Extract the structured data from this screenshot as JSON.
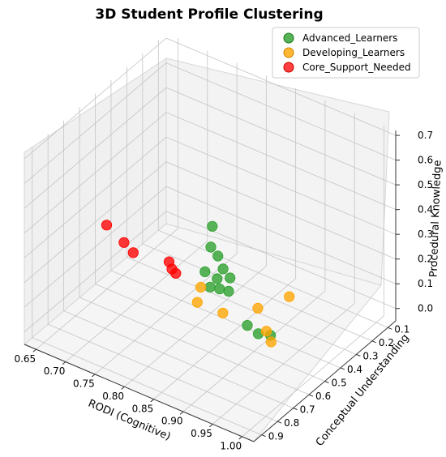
{
  "chart_data": {
    "type": "scatter",
    "projection": "3d",
    "title": "3D Student Profile Clustering",
    "xlabel": "RODI (Cognitive)",
    "ylabel": "Conceptual Understanding",
    "zlabel": "Procedural Knowledge",
    "xlim": [
      0.63,
      1.02
    ],
    "ylim": [
      0.05,
      0.95
    ],
    "zlim": [
      -0.05,
      0.72
    ],
    "xticks": [
      "0.65",
      "0.70",
      "0.75",
      "0.80",
      "0.85",
      "0.90",
      "0.95",
      "1.00"
    ],
    "yticks": [
      "0.1",
      "0.2",
      "0.3",
      "0.4",
      "0.5",
      "0.6",
      "0.7",
      "0.8",
      "0.9"
    ],
    "zticks": [
      "0.0",
      "0.1",
      "0.2",
      "0.3",
      "0.4",
      "0.5",
      "0.6",
      "0.7"
    ],
    "grid": true,
    "legend_position": "top-right",
    "series": [
      {
        "name": "Advanced_Learners",
        "color": "#2ca02c",
        "points": [
          {
            "x": 0.92,
            "y": 0.84,
            "z": 0.66
          },
          {
            "x": 0.9,
            "y": 0.73,
            "z": 0.46
          },
          {
            "x": 0.88,
            "y": 0.7,
            "z": 0.46
          },
          {
            "x": 0.91,
            "y": 0.69,
            "z": 0.36
          },
          {
            "x": 0.89,
            "y": 0.66,
            "z": 0.36
          },
          {
            "x": 0.87,
            "y": 0.7,
            "z": 0.35
          },
          {
            "x": 0.88,
            "y": 0.66,
            "z": 0.31
          },
          {
            "x": 0.99,
            "y": 0.81,
            "z": 0.28
          },
          {
            "x": 0.95,
            "y": 0.73,
            "z": 0.23
          },
          {
            "x": 0.96,
            "y": 0.62,
            "z": 0.14
          },
          {
            "x": 0.86,
            "y": 0.63,
            "z": 0.24
          },
          {
            "x": 0.86,
            "y": 0.57,
            "z": 0.2
          },
          {
            "x": 0.87,
            "y": 0.55,
            "z": 0.19
          }
        ]
      },
      {
        "name": "Developing_Learners",
        "color": "#ffa500",
        "points": [
          {
            "x": 0.82,
            "y": 0.54,
            "z": 0.15
          },
          {
            "x": 0.91,
            "y": 0.46,
            "z": 0.02
          },
          {
            "x": 0.91,
            "y": 0.43,
            "z": -0.04
          },
          {
            "x": 0.79,
            "y": 0.45,
            "z": 0.01
          },
          {
            "x": 0.82,
            "y": 0.4,
            "z": -0.03
          },
          {
            "x": 0.85,
            "y": 0.29,
            "z": -0.04
          },
          {
            "x": 0.89,
            "y": 0.24,
            "z": 0.02
          }
        ]
      },
      {
        "name": "Core_Support_Needed",
        "color": "#ff0000",
        "points": [
          {
            "x": 0.74,
            "y": 0.67,
            "z": 0.28
          },
          {
            "x": 0.66,
            "y": 0.54,
            "z": 0.24
          },
          {
            "x": 0.75,
            "y": 0.48,
            "z": 0.15
          },
          {
            "x": 0.66,
            "y": 0.43,
            "z": 0.11
          },
          {
            "x": 0.74,
            "y": 0.4,
            "z": 0.05
          },
          {
            "x": 0.72,
            "y": 0.35,
            "z": 0.02
          }
        ]
      }
    ]
  }
}
